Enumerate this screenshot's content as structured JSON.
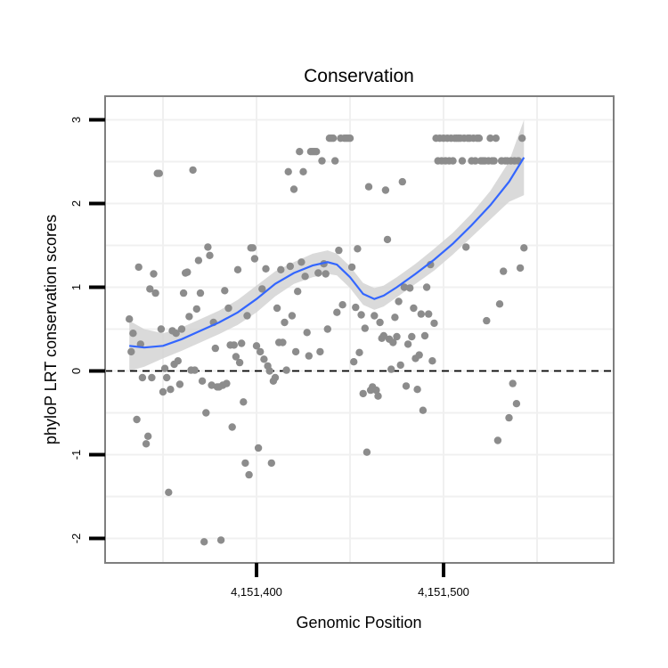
{
  "chart_data": {
    "type": "scatter",
    "title": "Conservation",
    "xlabel": "Genomic Position",
    "ylabel": "phyloP LRT conservation scores",
    "xlim": [
      4151320,
      4151590
    ],
    "ylim": [
      -2.3,
      3.3
    ],
    "x_ticks": [
      4151400,
      4151500
    ],
    "x_tick_labels": [
      "4,151,400",
      "4,151,500"
    ],
    "y_ticks": [
      -2,
      -1,
      0,
      1,
      2,
      3
    ],
    "y_tick_labels": [
      "-2",
      "-1",
      "0",
      "1",
      "2",
      "3"
    ],
    "reference_line": {
      "y": 0,
      "style": "dashed"
    },
    "grid": true,
    "colors": {
      "points": "#8c8c8c",
      "smooth": "#3366ff",
      "band": "#d3d3d3"
    },
    "points": [
      [
        4151332,
        0.62
      ],
      [
        4151333,
        0.23
      ],
      [
        4151334,
        0.45
      ],
      [
        4151336,
        -0.58
      ],
      [
        4151337,
        1.24
      ],
      [
        4151338,
        0.32
      ],
      [
        4151339,
        -0.08
      ],
      [
        4151341,
        -0.87
      ],
      [
        4151342,
        -0.78
      ],
      [
        4151343,
        0.98
      ],
      [
        4151344,
        -0.08
      ],
      [
        4151345,
        1.16
      ],
      [
        4151346,
        0.93
      ],
      [
        4151347,
        2.36
      ],
      [
        4151348,
        2.36
      ],
      [
        4151349,
        0.5
      ],
      [
        4151350,
        -0.25
      ],
      [
        4151351,
        0.03
      ],
      [
        4151352,
        -0.08
      ],
      [
        4151353,
        -1.45
      ],
      [
        4151354,
        -0.22
      ],
      [
        4151355,
        0.48
      ],
      [
        4151356,
        0.08
      ],
      [
        4151357,
        0.45
      ],
      [
        4151358,
        0.12
      ],
      [
        4151359,
        -0.16
      ],
      [
        4151360,
        0.5
      ],
      [
        4151361,
        0.93
      ],
      [
        4151362,
        1.17
      ],
      [
        4151363,
        1.18
      ],
      [
        4151364,
        0.65
      ],
      [
        4151365,
        0.01
      ],
      [
        4151366,
        2.4
      ],
      [
        4151367,
        0.01
      ],
      [
        4151368,
        0.74
      ],
      [
        4151369,
        1.32
      ],
      [
        4151370,
        0.93
      ],
      [
        4151371,
        -0.12
      ],
      [
        4151372,
        -2.04
      ],
      [
        4151373,
        -0.5
      ],
      [
        4151374,
        1.48
      ],
      [
        4151375,
        1.38
      ],
      [
        4151376,
        -0.17
      ],
      [
        4151377,
        0.58
      ],
      [
        4151378,
        0.27
      ],
      [
        4151379,
        -0.19
      ],
      [
        4151380,
        -0.19
      ],
      [
        4151381,
        -2.02
      ],
      [
        4151382,
        -0.17
      ],
      [
        4151383,
        0.96
      ],
      [
        4151384,
        -0.15
      ],
      [
        4151385,
        0.75
      ],
      [
        4151386,
        0.31
      ],
      [
        4151387,
        -0.67
      ],
      [
        4151388,
        0.31
      ],
      [
        4151389,
        0.17
      ],
      [
        4151390,
        1.21
      ],
      [
        4151391,
        0.1
      ],
      [
        4151392,
        0.33
      ],
      [
        4151393,
        -0.37
      ],
      [
        4151394,
        -1.1
      ],
      [
        4151395,
        0.66
      ],
      [
        4151396,
        -1.24
      ],
      [
        4151397,
        1.47
      ],
      [
        4151398,
        1.47
      ],
      [
        4151399,
        1.34
      ],
      [
        4151400,
        0.3
      ],
      [
        4151401,
        -0.92
      ],
      [
        4151402,
        0.23
      ],
      [
        4151403,
        0.98
      ],
      [
        4151404,
        0.14
      ],
      [
        4151405,
        1.22
      ],
      [
        4151406,
        0.06
      ],
      [
        4151407,
        0.0
      ],
      [
        4151408,
        -1.1
      ],
      [
        4151409,
        -0.12
      ],
      [
        4151410,
        -0.08
      ],
      [
        4151411,
        0.75
      ],
      [
        4151412,
        0.34
      ],
      [
        4151413,
        1.21
      ],
      [
        4151414,
        0.34
      ],
      [
        4151415,
        0.58
      ],
      [
        4151416,
        0.01
      ],
      [
        4151417,
        2.38
      ],
      [
        4151418,
        1.25
      ],
      [
        4151419,
        0.66
      ],
      [
        4151420,
        2.17
      ],
      [
        4151421,
        0.23
      ],
      [
        4151422,
        0.95
      ],
      [
        4151423,
        2.62
      ],
      [
        4151424,
        1.3
      ],
      [
        4151425,
        2.38
      ],
      [
        4151426,
        1.13
      ],
      [
        4151427,
        0.46
      ],
      [
        4151428,
        0.18
      ],
      [
        4151429,
        2.62
      ],
      [
        4151430,
        2.62
      ],
      [
        4151431,
        2.62
      ],
      [
        4151432,
        2.62
      ],
      [
        4151433,
        1.17
      ],
      [
        4151434,
        0.23
      ],
      [
        4151435,
        2.51
      ],
      [
        4151436,
        1.28
      ],
      [
        4151437,
        1.16
      ],
      [
        4151438,
        0.5
      ],
      [
        4151439,
        2.78
      ],
      [
        4151440,
        2.78
      ],
      [
        4151441,
        2.78
      ],
      [
        4151442,
        2.51
      ],
      [
        4151443,
        0.7
      ],
      [
        4151444,
        1.44
      ],
      [
        4151445,
        2.78
      ],
      [
        4151446,
        0.79
      ],
      [
        4151447,
        2.78
      ],
      [
        4151448,
        2.78
      ],
      [
        4151449,
        2.78
      ],
      [
        4151450,
        2.78
      ],
      [
        4151451,
        1.24
      ],
      [
        4151452,
        0.11
      ],
      [
        4151453,
        0.76
      ],
      [
        4151454,
        1.46
      ],
      [
        4151455,
        0.22
      ],
      [
        4151456,
        0.67
      ],
      [
        4151457,
        -0.27
      ],
      [
        4151458,
        0.51
      ],
      [
        4151459,
        -0.97
      ],
      [
        4151460,
        2.2
      ],
      [
        4151461,
        -0.23
      ],
      [
        4151462,
        -0.19
      ],
      [
        4151463,
        0.66
      ],
      [
        4151464,
        -0.23
      ],
      [
        4151465,
        -0.3
      ],
      [
        4151466,
        0.58
      ],
      [
        4151467,
        0.39
      ],
      [
        4151468,
        0.42
      ],
      [
        4151469,
        2.16
      ],
      [
        4151470,
        1.57
      ],
      [
        4151471,
        0.38
      ],
      [
        4151472,
        0.02
      ],
      [
        4151473,
        0.34
      ],
      [
        4151474,
        0.64
      ],
      [
        4151475,
        0.41
      ],
      [
        4151476,
        0.83
      ],
      [
        4151477,
        0.07
      ],
      [
        4151478,
        2.26
      ],
      [
        4151479,
        1.0
      ],
      [
        4151480,
        -0.18
      ],
      [
        4151481,
        0.32
      ],
      [
        4151482,
        0.99
      ],
      [
        4151483,
        0.41
      ],
      [
        4151484,
        0.75
      ],
      [
        4151485,
        0.15
      ],
      [
        4151486,
        -0.22
      ],
      [
        4151487,
        0.19
      ],
      [
        4151488,
        0.68
      ],
      [
        4151489,
        -0.47
      ],
      [
        4151490,
        0.42
      ],
      [
        4151491,
        1.0
      ],
      [
        4151492,
        0.68
      ],
      [
        4151493,
        1.27
      ],
      [
        4151494,
        0.12
      ],
      [
        4151495,
        0.57
      ],
      [
        4151496,
        2.78
      ],
      [
        4151497,
        2.51
      ],
      [
        4151498,
        2.78
      ],
      [
        4151499,
        2.51
      ],
      [
        4151500,
        2.78
      ],
      [
        4151501,
        2.51
      ],
      [
        4151502,
        2.78
      ],
      [
        4151503,
        2.51
      ],
      [
        4151504,
        2.78
      ],
      [
        4151505,
        2.51
      ],
      [
        4151506,
        2.78
      ],
      [
        4151507,
        2.78
      ],
      [
        4151508,
        2.78
      ],
      [
        4151509,
        2.78
      ],
      [
        4151510,
        2.51
      ],
      [
        4151511,
        2.78
      ],
      [
        4151512,
        1.48
      ],
      [
        4151513,
        2.78
      ],
      [
        4151514,
        2.78
      ],
      [
        4151515,
        2.51
      ],
      [
        4151516,
        2.78
      ],
      [
        4151517,
        2.51
      ],
      [
        4151518,
        2.78
      ],
      [
        4151519,
        2.78
      ],
      [
        4151520,
        2.51
      ],
      [
        4151521,
        2.51
      ],
      [
        4151522,
        2.51
      ],
      [
        4151523,
        0.6
      ],
      [
        4151524,
        2.51
      ],
      [
        4151525,
        2.78
      ],
      [
        4151526,
        2.51
      ],
      [
        4151527,
        2.51
      ],
      [
        4151528,
        2.78
      ],
      [
        4151529,
        -0.83
      ],
      [
        4151530,
        0.8
      ],
      [
        4151531,
        2.51
      ],
      [
        4151532,
        1.19
      ],
      [
        4151533,
        2.51
      ],
      [
        4151534,
        2.51
      ],
      [
        4151535,
        -0.56
      ],
      [
        4151536,
        2.51
      ],
      [
        4151537,
        -0.15
      ],
      [
        4151538,
        2.51
      ],
      [
        4151539,
        -0.39
      ],
      [
        4151540,
        2.51
      ],
      [
        4151541,
        1.23
      ],
      [
        4151542,
        2.78
      ],
      [
        4151543,
        1.47
      ]
    ],
    "smooth": [
      [
        4151332,
        0.3
      ],
      [
        4151340,
        0.28
      ],
      [
        4151350,
        0.3
      ],
      [
        4151360,
        0.38
      ],
      [
        4151370,
        0.48
      ],
      [
        4151380,
        0.58
      ],
      [
        4151390,
        0.7
      ],
      [
        4151400,
        0.86
      ],
      [
        4151410,
        1.04
      ],
      [
        4151420,
        1.17
      ],
      [
        4151430,
        1.26
      ],
      [
        4151438,
        1.3
      ],
      [
        4151443,
        1.27
      ],
      [
        4151450,
        1.12
      ],
      [
        4151457,
        0.92
      ],
      [
        4151463,
        0.86
      ],
      [
        4151468,
        0.9
      ],
      [
        4151475,
        1.0
      ],
      [
        4151485,
        1.16
      ],
      [
        4151495,
        1.33
      ],
      [
        4151505,
        1.52
      ],
      [
        4151515,
        1.74
      ],
      [
        4151525,
        1.98
      ],
      [
        4151535,
        2.26
      ],
      [
        4151543,
        2.55
      ]
    ],
    "band_upper": [
      [
        4151332,
        0.6
      ],
      [
        4151340,
        0.5
      ],
      [
        4151350,
        0.45
      ],
      [
        4151360,
        0.52
      ],
      [
        4151370,
        0.62
      ],
      [
        4151380,
        0.72
      ],
      [
        4151390,
        0.85
      ],
      [
        4151400,
        1.02
      ],
      [
        4151410,
        1.19
      ],
      [
        4151420,
        1.3
      ],
      [
        4151430,
        1.4
      ],
      [
        4151438,
        1.44
      ],
      [
        4151443,
        1.4
      ],
      [
        4151450,
        1.25
      ],
      [
        4151457,
        1.05
      ],
      [
        4151463,
        0.99
      ],
      [
        4151468,
        1.02
      ],
      [
        4151475,
        1.12
      ],
      [
        4151485,
        1.28
      ],
      [
        4151495,
        1.46
      ],
      [
        4151505,
        1.65
      ],
      [
        4151515,
        1.88
      ],
      [
        4151525,
        2.15
      ],
      [
        4151535,
        2.5
      ],
      [
        4151543,
        3.0
      ]
    ],
    "band_lower": [
      [
        4151332,
        0.0
      ],
      [
        4151340,
        0.05
      ],
      [
        4151350,
        0.15
      ],
      [
        4151360,
        0.24
      ],
      [
        4151370,
        0.34
      ],
      [
        4151380,
        0.44
      ],
      [
        4151390,
        0.55
      ],
      [
        4151400,
        0.7
      ],
      [
        4151410,
        0.89
      ],
      [
        4151420,
        1.04
      ],
      [
        4151430,
        1.12
      ],
      [
        4151438,
        1.16
      ],
      [
        4151443,
        1.14
      ],
      [
        4151450,
        0.99
      ],
      [
        4151457,
        0.79
      ],
      [
        4151463,
        0.73
      ],
      [
        4151468,
        0.77
      ],
      [
        4151475,
        0.88
      ],
      [
        4151485,
        1.04
      ],
      [
        4151495,
        1.2
      ],
      [
        4151505,
        1.39
      ],
      [
        4151515,
        1.6
      ],
      [
        4151525,
        1.81
      ],
      [
        4151535,
        2.02
      ],
      [
        4151543,
        2.1
      ]
    ]
  }
}
